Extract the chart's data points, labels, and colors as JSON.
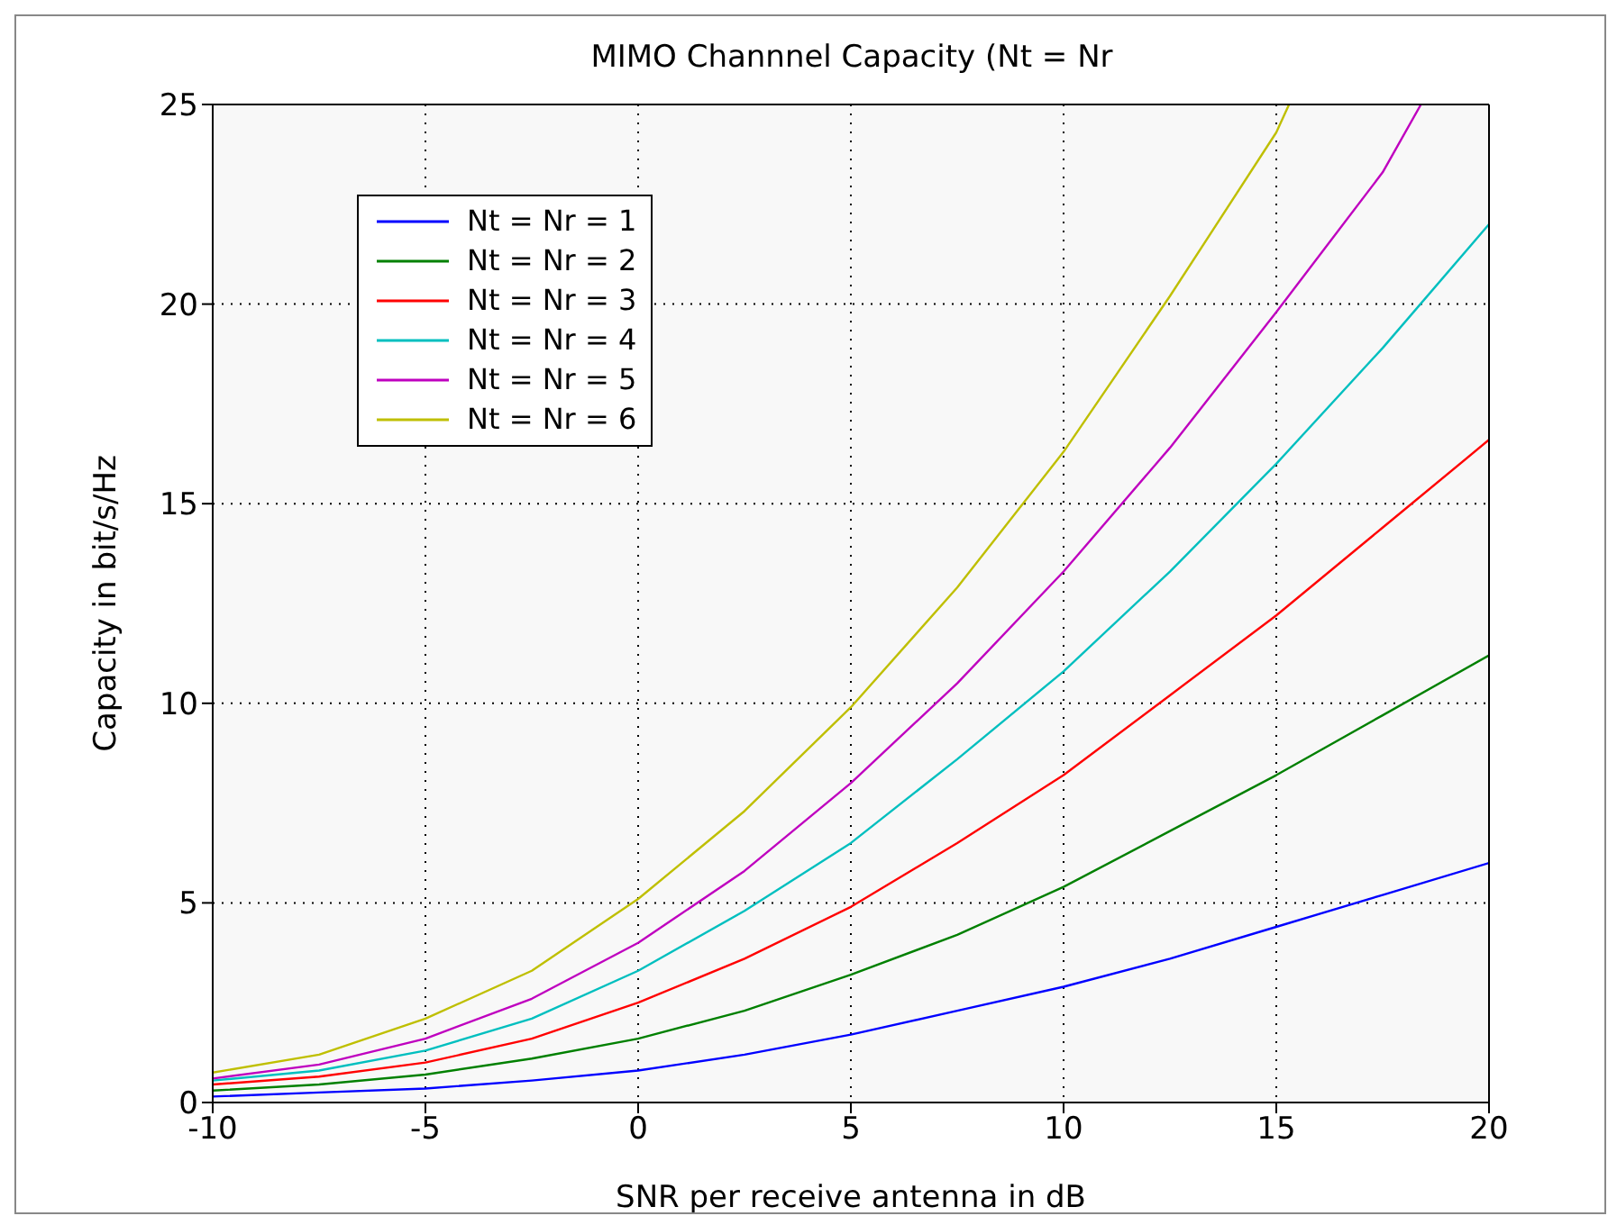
{
  "chart_data": {
    "type": "line",
    "title": "MIMO Channnel Capacity (Nt = Nr",
    "xlabel": "SNR per receive antenna in dB",
    "ylabel": "Capacity in bit/s/Hz",
    "x": [
      -10,
      -7.5,
      -5,
      -2.5,
      0,
      2.5,
      5,
      7.5,
      10,
      12.5,
      15,
      17.5,
      20
    ],
    "series": [
      {
        "name": "Nt = Nr = 1",
        "color": "#0000ff",
        "values": [
          0.15,
          0.25,
          0.35,
          0.55,
          0.8,
          1.2,
          1.7,
          2.3,
          2.9,
          3.6,
          4.4,
          5.2,
          6.0
        ]
      },
      {
        "name": "Nt = Nr = 2",
        "color": "#008000",
        "values": [
          0.3,
          0.45,
          0.7,
          1.1,
          1.6,
          2.3,
          3.2,
          4.2,
          5.4,
          6.8,
          8.2,
          9.7,
          11.2
        ]
      },
      {
        "name": "Nt = Nr = 3",
        "color": "#ff0000",
        "values": [
          0.45,
          0.65,
          1.0,
          1.6,
          2.5,
          3.6,
          4.9,
          6.5,
          8.2,
          10.2,
          12.2,
          14.4,
          16.6
        ]
      },
      {
        "name": "Nt = Nr = 4",
        "color": "#00bfbf",
        "values": [
          0.55,
          0.8,
          1.3,
          2.1,
          3.3,
          4.8,
          6.5,
          8.6,
          10.8,
          13.3,
          16.0,
          18.9,
          22.0
        ]
      },
      {
        "name": "Nt = Nr = 5",
        "color": "#bf00bf",
        "x": [
          -10,
          -7.5,
          -5,
          -2.5,
          0,
          2.5,
          5,
          7.5,
          10,
          12.5,
          15,
          17.5,
          18.4
        ],
        "values": [
          0.6,
          0.95,
          1.6,
          2.6,
          4.0,
          5.8,
          8.0,
          10.5,
          13.3,
          16.4,
          19.8,
          23.3,
          25
        ]
      },
      {
        "name": "Nt = Nr = 6",
        "color": "#bfbf00",
        "x": [
          -10,
          -7.5,
          -5,
          -2.5,
          0,
          2.5,
          5,
          7.5,
          10,
          12.5,
          15,
          15.3
        ],
        "values": [
          0.75,
          1.2,
          2.1,
          3.3,
          5.1,
          7.3,
          9.9,
          12.9,
          16.3,
          20.2,
          24.3,
          25
        ]
      }
    ],
    "xlim": [
      -10,
      20
    ],
    "xticks": [
      -10,
      -5,
      0,
      5,
      10,
      15,
      20
    ],
    "ylim": [
      0,
      25
    ],
    "yticks": [
      0,
      5,
      10,
      15,
      20,
      25
    ],
    "grid": true,
    "legend": "top left",
    "line_style": "solid",
    "marker": "none"
  }
}
